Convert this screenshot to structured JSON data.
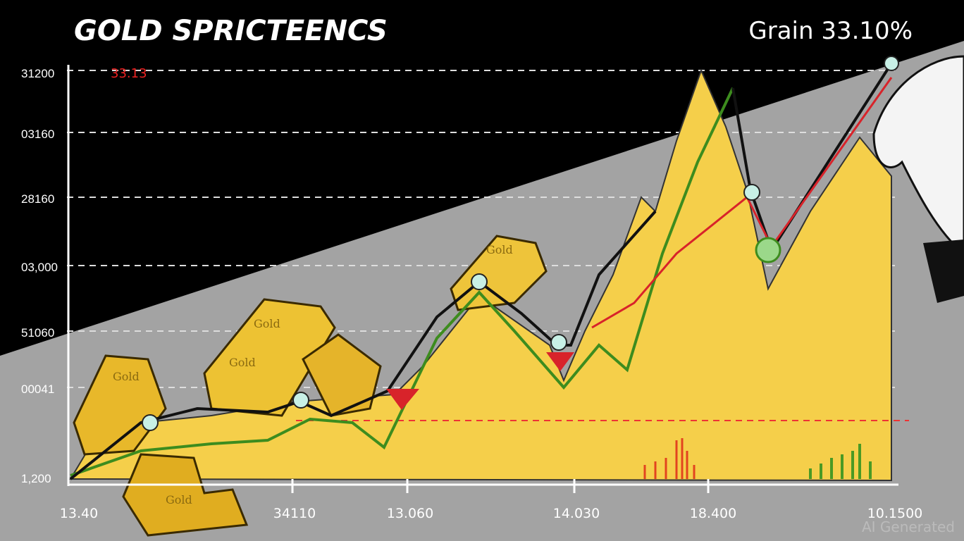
{
  "title": "GOLD SPRICTEENCS",
  "gain_label": "Grain 33.10%",
  "annotation": "33.13",
  "y_labels": [
    "31200",
    "03160",
    "28160",
    "03,000",
    "51060",
    "00041",
    "1,200"
  ],
  "x_labels": [
    "13.40",
    "34110",
    "13.060",
    "14.030",
    "18.400",
    "10.1500"
  ],
  "bar_labels": [
    "Gold",
    "Gold",
    "Gold",
    "Gold",
    "Gold"
  ],
  "watermark": "AI Generated"
}
